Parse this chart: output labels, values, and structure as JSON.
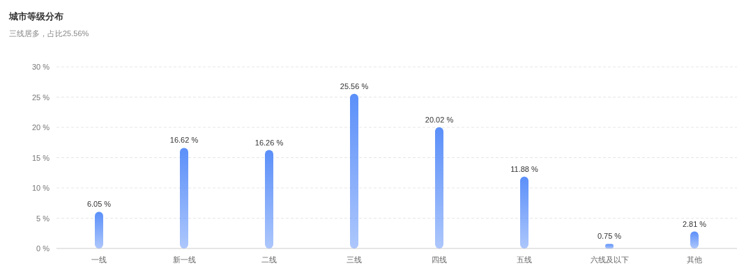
{
  "chart_data": {
    "type": "bar",
    "title": "城市等级分布",
    "subtitle": "三线居多，占比25.56%",
    "categories": [
      "一线",
      "新一线",
      "二线",
      "三线",
      "四线",
      "五线",
      "六线及以下",
      "其他"
    ],
    "values": [
      6.05,
      16.62,
      16.26,
      25.56,
      20.02,
      11.88,
      0.75,
      2.81
    ],
    "value_labels": [
      "6.05 %",
      "16.62 %",
      "16.26 %",
      "25.56 %",
      "20.02 %",
      "11.88 %",
      "0.75 %",
      "2.81 %"
    ],
    "color": "#5b8ff9",
    "ylim": [
      0,
      30
    ],
    "yticks": [
      {
        "value": 0,
        "label": "0 %"
      },
      {
        "value": 5,
        "label": "5 %"
      },
      {
        "value": 10,
        "label": "10 %"
      },
      {
        "value": 15,
        "label": "15 %"
      },
      {
        "value": 20,
        "label": "20 %"
      },
      {
        "value": 25,
        "label": "25 %"
      },
      {
        "value": 30,
        "label": "30 %"
      }
    ],
    "grid": "y"
  }
}
